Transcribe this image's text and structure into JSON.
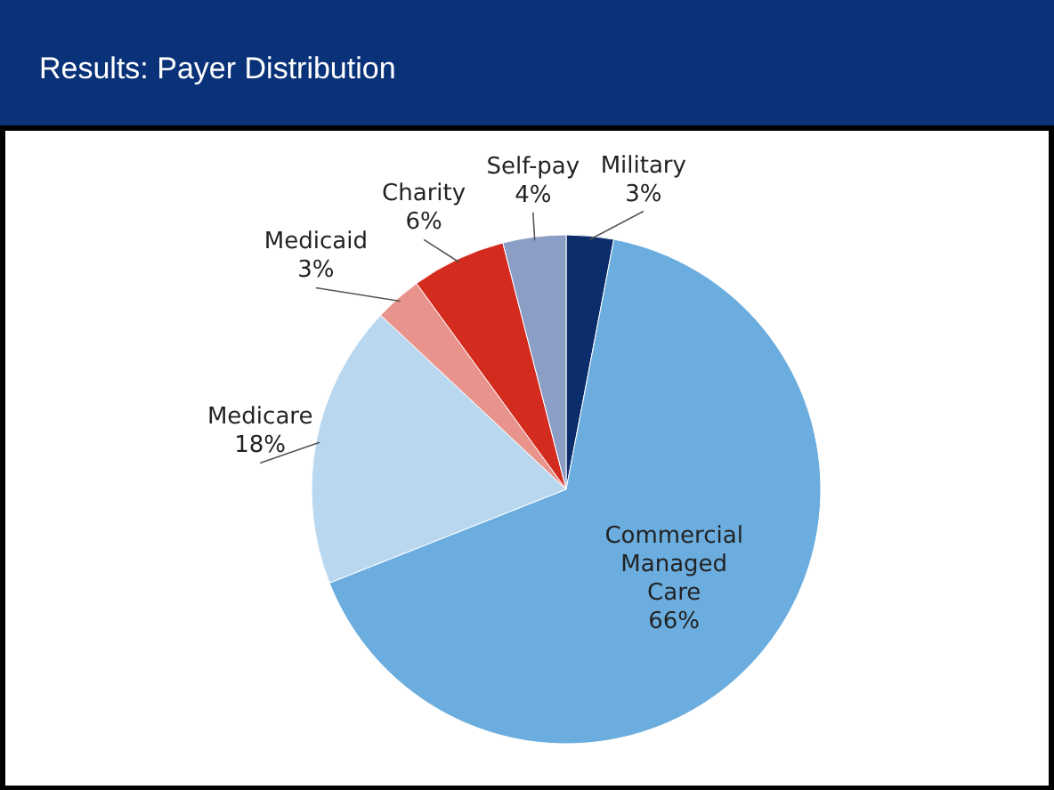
{
  "chart_data": {
    "type": "pie",
    "title": "Results: Payer Distribution",
    "categories": [
      "Military",
      "Commercial Managed Care",
      "Medicare",
      "Medicaid",
      "Charity",
      "Self-pay"
    ],
    "values": [
      3,
      66,
      18,
      3,
      6,
      4
    ],
    "value_labels": [
      "3%",
      "66%",
      "18%",
      "3%",
      "6%",
      "4%"
    ],
    "colors": [
      "#0b2d6b",
      "#6badde",
      "#b9d8f0",
      "#e8948c",
      "#d42b1f",
      "#8b9ec6"
    ]
  }
}
